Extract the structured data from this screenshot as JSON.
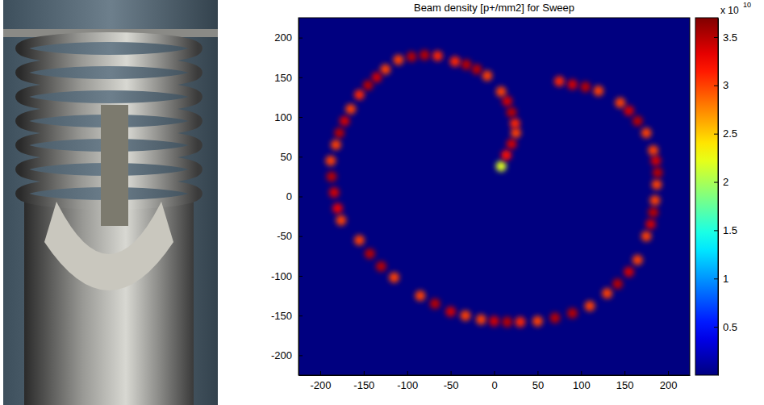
{
  "chart_data": {
    "type": "scatter",
    "title": "Beam density [p+/mm2] for Sweep",
    "x": [
      8,
      14,
      20,
      25,
      24,
      20,
      15,
      8,
      -8,
      -20,
      -32,
      -45,
      -65,
      -80,
      -95,
      -110,
      -125,
      -135,
      -145,
      -155,
      -165,
      -172,
      -178,
      -182,
      -188,
      -187,
      -184,
      -180,
      -176,
      -155,
      -143,
      -130,
      -115,
      -85,
      -68,
      -50,
      -33,
      -15,
      0,
      15,
      30,
      50,
      70,
      90,
      110,
      130,
      142,
      155,
      165,
      175,
      180,
      183,
      185,
      187,
      188,
      186,
      183,
      175,
      165,
      155,
      145,
      120,
      105,
      90,
      75
    ],
    "values": [
      38,
      52,
      66,
      80,
      92,
      106,
      120,
      132,
      152,
      160,
      166,
      170,
      177,
      178,
      176,
      172,
      160,
      150,
      140,
      128,
      110,
      95,
      80,
      65,
      45,
      25,
      5,
      -15,
      -30,
      -55,
      -72,
      -88,
      -102,
      -125,
      -135,
      -145,
      -150,
      -155,
      -157,
      -158,
      -158,
      -157,
      -153,
      -147,
      -138,
      -122,
      -110,
      -95,
      -80,
      -50,
      -35,
      -20,
      -5,
      15,
      30,
      45,
      58,
      80,
      95,
      108,
      118,
      133,
      138,
      141,
      145
    ],
    "density": [
      2.2,
      3.2,
      3.4,
      3.0,
      3.1,
      3.5,
      3.4,
      3.0,
      3.0,
      3.5,
      3.5,
      3.1,
      3.1,
      3.5,
      3.5,
      3.0,
      3.0,
      3.4,
      3.5,
      3.1,
      3.0,
      3.4,
      3.5,
      3.0,
      3.0,
      3.5,
      3.4,
      3.3,
      3.0,
      3.0,
      3.5,
      3.5,
      3.0,
      3.0,
      3.5,
      3.4,
      3.0,
      3.0,
      3.4,
      3.5,
      3.1,
      3.0,
      3.5,
      3.5,
      3.0,
      3.0,
      3.5,
      3.4,
      3.0,
      3.0,
      3.4,
      3.5,
      3.0,
      3.0,
      3.5,
      3.4,
      3.0,
      3.0,
      3.5,
      3.4,
      3.0,
      3.0,
      3.5,
      3.4,
      3.1
    ],
    "xlim": [
      -225,
      225
    ],
    "ylim": [
      -225,
      225
    ],
    "xticks": [
      -200,
      -150,
      -100,
      -50,
      0,
      50,
      100,
      150,
      200
    ],
    "yticks": [
      -200,
      -150,
      -100,
      -50,
      0,
      50,
      100,
      150,
      200
    ],
    "colorbar": {
      "range": [
        0,
        3.7
      ],
      "ticks": [
        0.5,
        1,
        1.5,
        2,
        2.5,
        3,
        3.5
      ],
      "label": "x 10",
      "exponent": "10"
    }
  }
}
